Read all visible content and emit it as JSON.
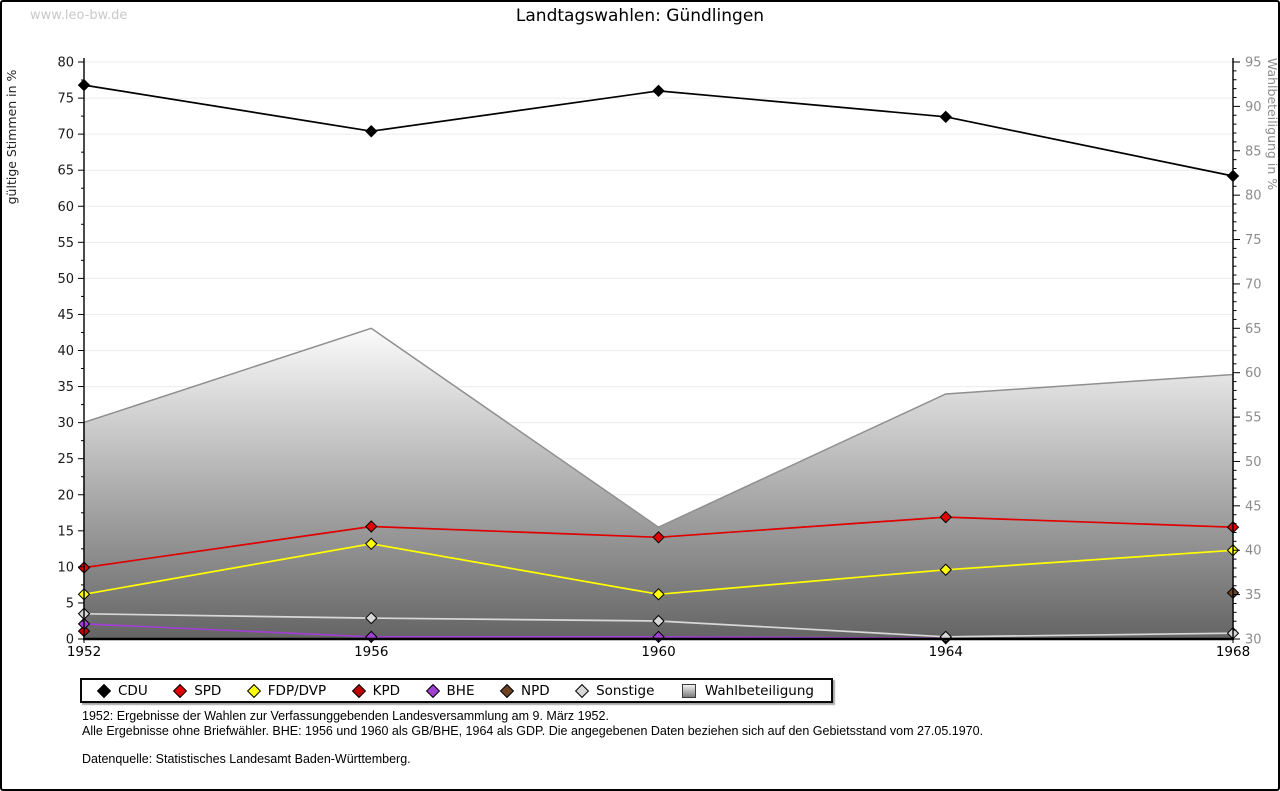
{
  "page": {
    "watermark": "www.leo-bw.de",
    "title": "Landtagswahlen: Gündlingen",
    "footnotes": {
      "line1": "1952: Ergebnisse der Wahlen zur Verfassunggebenden Landesversammlung am 9. März 1952.",
      "line2": "Alle Ergebnisse ohne Briefwähler. BHE: 1956 und 1960 als GB/BHE, 1964 als GDP. Die angegebenen Daten beziehen sich auf den Gebietsstand vom 27.05.1970.",
      "source": "Datenquelle: Statistisches Landesamt Baden-Württemberg."
    }
  },
  "chart_data": {
    "type": "line",
    "title": "Landtagswahlen: Gündlingen",
    "x": [
      1952,
      1956,
      1960,
      1964,
      1968
    ],
    "left_axis": {
      "label": "gültige Stimmen in %",
      "min": 0,
      "max": 80,
      "tick_step": 5,
      "minor_step": 2.5
    },
    "right_axis": {
      "label": "Wahlbeteiligung in %",
      "min": 30,
      "max": 95,
      "tick_step": 5,
      "minor_step": 1
    },
    "grid": true,
    "legend_position": "bottom",
    "colors": {
      "grid": "#ececec",
      "axis": "#000000",
      "left_tick_text": "#1a1a1a",
      "right_tick_text": "#8c8c8c",
      "area_top": "#fbfbfb",
      "area_bottom": "#646464",
      "area_stroke": "#8f8f8f"
    },
    "series": [
      {
        "name": "CDU",
        "axis": "left",
        "marker": "diamond",
        "color": "#000000",
        "points": [
          [
            1952,
            76.8
          ],
          [
            1956,
            70.4
          ],
          [
            1960,
            76.0
          ],
          [
            1964,
            72.4
          ],
          [
            1968,
            64.2
          ]
        ]
      },
      {
        "name": "SPD",
        "axis": "left",
        "marker": "diamond",
        "color": "#e00000",
        "points": [
          [
            1952,
            9.9
          ],
          [
            1956,
            15.6
          ],
          [
            1960,
            14.1
          ],
          [
            1964,
            16.9
          ],
          [
            1968,
            15.5
          ]
        ]
      },
      {
        "name": "FDP/DVP",
        "axis": "left",
        "marker": "diamond",
        "color": "#ffff00",
        "points": [
          [
            1952,
            6.2
          ],
          [
            1956,
            13.2
          ],
          [
            1960,
            6.2
          ],
          [
            1964,
            9.6
          ],
          [
            1968,
            12.3
          ]
        ]
      },
      {
        "name": "KPD",
        "axis": "left",
        "marker": "diamond",
        "color": "#c00000",
        "points": [
          [
            1952,
            1.1
          ]
        ]
      },
      {
        "name": "BHE",
        "axis": "left",
        "marker": "diamond",
        "color": "#a040d0",
        "points": [
          [
            1952,
            2.1
          ],
          [
            1956,
            0.3
          ],
          [
            1960,
            0.3
          ],
          [
            1964,
            0.1
          ]
        ]
      },
      {
        "name": "NPD",
        "axis": "left",
        "marker": "diamond",
        "color": "#6d4324",
        "points": [
          [
            1968,
            6.4
          ]
        ]
      },
      {
        "name": "Sonstige",
        "axis": "left",
        "marker": "diamond",
        "color": "#d8d8d8",
        "points": [
          [
            1952,
            3.5
          ],
          [
            1956,
            2.9
          ],
          [
            1960,
            2.5
          ],
          [
            1964,
            0.3
          ],
          [
            1968,
            0.8
          ]
        ]
      },
      {
        "name": "Wahlbeteiligung",
        "axis": "right",
        "type": "area",
        "marker": "square",
        "color": "#aaaaaa",
        "points": [
          [
            1952,
            54.4
          ],
          [
            1956,
            65.0
          ],
          [
            1960,
            42.6
          ],
          [
            1964,
            57.6
          ],
          [
            1968,
            59.8
          ]
        ]
      }
    ]
  }
}
